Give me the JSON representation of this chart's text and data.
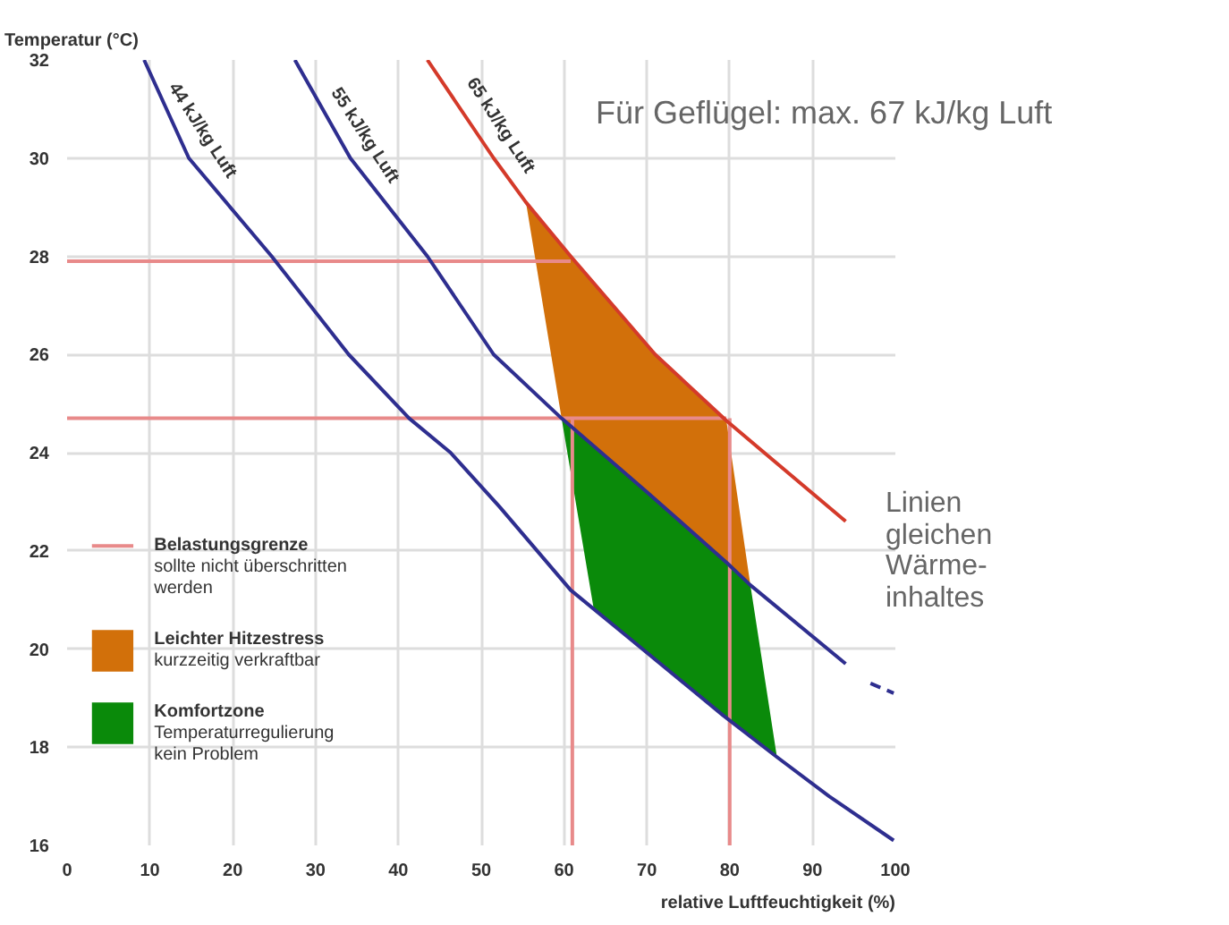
{
  "chart_data": {
    "type": "line",
    "xlabel": "relative Luftfeuchtigkeit (%)",
    "ylabel": "Temperatur (°C)",
    "xlim": [
      0,
      100
    ],
    "ylim": [
      16,
      32
    ],
    "xticks": [
      0,
      10,
      20,
      30,
      40,
      50,
      60,
      70,
      80,
      90,
      100
    ],
    "yticks": [
      16,
      18,
      20,
      22,
      24,
      26,
      28,
      30,
      32
    ],
    "grid": true,
    "legend": "bottom left",
    "series": [
      {
        "name": "Belastungsgrenze\nsollte nicht überschritten\nwerden",
        "type": "line",
        "color": "#e88a8a",
        "x": [
          0,
          60.8,
          null,
          0,
          79.6,
          null,
          61,
          61,
          null,
          80,
          80
        ],
        "values": [
          27.9,
          27.9,
          null,
          24.7,
          24.7,
          null,
          16,
          24.7,
          null,
          16,
          24.7
        ]
      },
      {
        "name": "Leichter Hitzestress\nkurzzeitig verkraftbar",
        "type": "area",
        "color": "#d2700a",
        "x": [
          55.4,
          60.8,
          71,
          79.6,
          82.5,
          79.7,
          70,
          59.7
        ],
        "values": [
          29.1,
          28,
          26,
          24.65,
          21.3,
          21.75,
          23.2,
          24.7
        ]
      },
      {
        "name": "Komfortzone\nTemperaturregulierung\nkein Problem",
        "type": "area",
        "color": "#0a8a0a",
        "x": [
          59.7,
          70,
          79.7,
          82.5,
          85.7,
          79.2,
          67.3,
          63.6
        ],
        "values": [
          24.7,
          23.2,
          21.75,
          21.3,
          17.8,
          18.65,
          20.3,
          20.8
        ]
      },
      {
        "color": "#2e2e8f",
        "x": [
          9.3,
          14.7,
          24.7,
          34,
          41.3,
          46.3,
          52.2,
          60.8,
          67.3,
          79.2,
          85.7,
          92,
          99.8
        ],
        "values": [
          32,
          30,
          28,
          26,
          24.7,
          24,
          22.9,
          21.2,
          20.3,
          18.65,
          17.8,
          17,
          16.1
        ]
      },
      {
        "color": "#2e2e8f",
        "x": [
          27.5,
          34.2,
          43.5,
          51.5,
          59.7,
          70,
          79.7,
          82.5,
          94
        ],
        "values": [
          32,
          30,
          28,
          26,
          24.7,
          23.2,
          21.75,
          21.3,
          19.7
        ]
      },
      {
        "color": "#2e2e8f",
        "line_style": "dashed",
        "x": [
          97,
          99.8
        ],
        "values": [
          19.3,
          19.1
        ]
      },
      {
        "color": "#d43a2a",
        "x": [
          43.5,
          51.5,
          55.4,
          60.8,
          71,
          79.6,
          94
        ],
        "values": [
          32,
          30,
          29.1,
          28,
          26,
          24.65,
          22.6
        ]
      }
    ],
    "annotations": [
      {
        "text": "44 kJ/kg Luft",
        "x": 13.9,
        "y": 30.3
      },
      {
        "text": "55 kJ/kg Luft",
        "x": 33.5,
        "y": 30.2
      },
      {
        "text": "65 kJ/kg Luft",
        "x": 49.9,
        "y": 30.4
      },
      "Für Geflügel: max. 67 kJ/kg Luft",
      "Linien\ngleichen\nWärme-\ninhaltes"
    ]
  }
}
